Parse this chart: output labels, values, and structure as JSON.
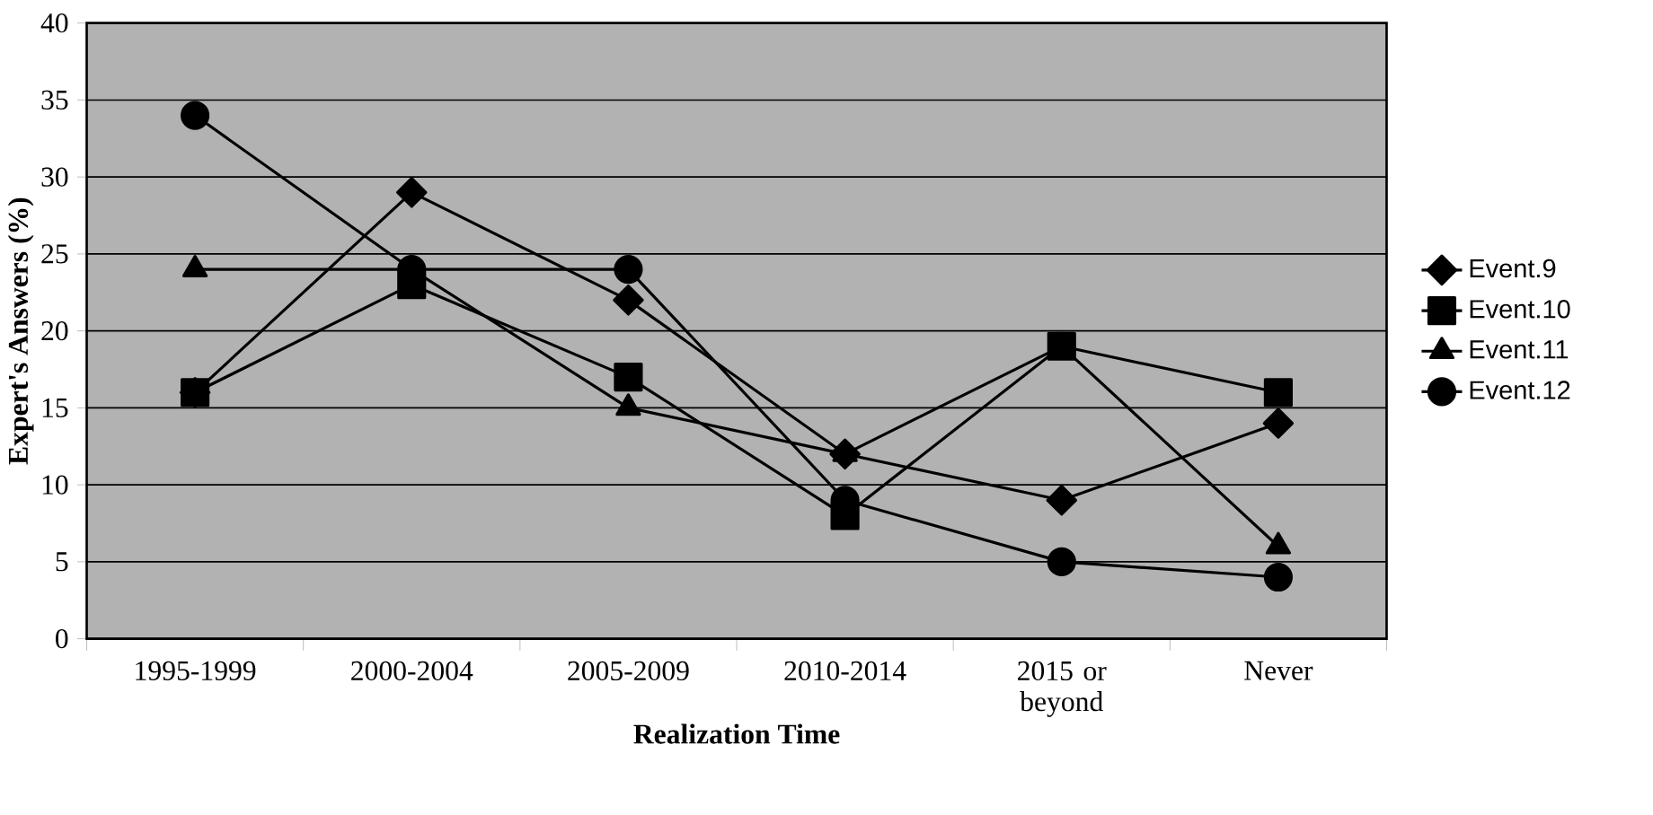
{
  "chart_data": {
    "type": "line",
    "xlabel": "Realization Time",
    "ylabel": "Expert's Answers (%)",
    "categories": [
      "1995-1999",
      "2000-2004",
      "2005-2009",
      "2010-2014",
      "2015 or beyond",
      "Never"
    ],
    "series": [
      {
        "name": "Event.9",
        "color": "#000000",
        "marker": "diamond",
        "values": [
          16,
          29,
          22,
          12,
          9,
          14
        ]
      },
      {
        "name": "Event.10",
        "color": "#000000",
        "marker": "square",
        "values": [
          16,
          23,
          17,
          8,
          19,
          16
        ]
      },
      {
        "name": "Event.11",
        "color": "#000000",
        "marker": "triangle",
        "values": [
          24,
          24,
          15,
          12,
          19,
          6
        ]
      },
      {
        "name": "Event.12",
        "color": "#000000",
        "marker": "circle",
        "values": [
          34,
          24,
          24,
          9,
          5,
          4
        ]
      }
    ],
    "ylim": [
      0,
      40
    ],
    "yticks": [
      0,
      5,
      10,
      15,
      20,
      25,
      30,
      35,
      40
    ],
    "grid": "y",
    "legend": "right",
    "line_style": "solid"
  }
}
